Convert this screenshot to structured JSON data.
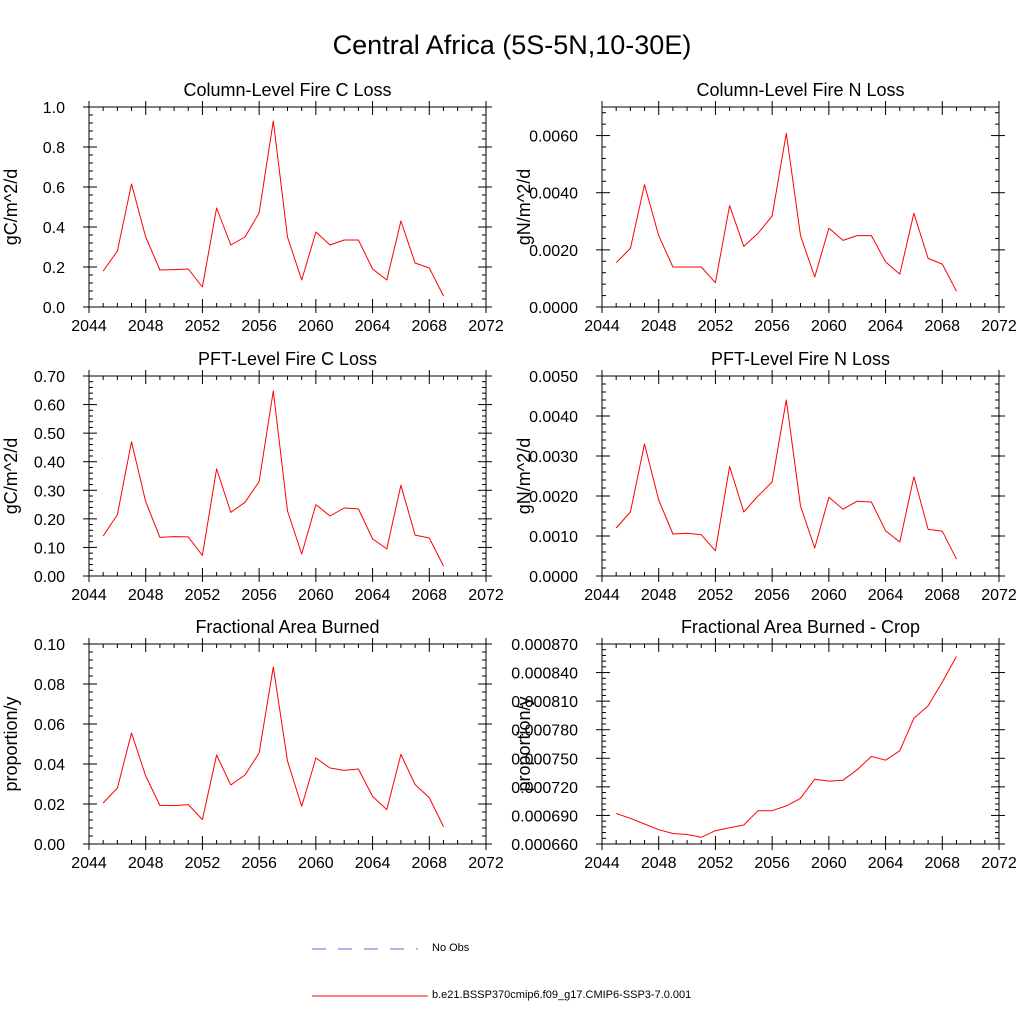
{
  "title": "Central Africa (5S-5N,10-30E)",
  "colors": {
    "model": "#ff0000",
    "obs": "#6a6ad8",
    "axis": "#000000"
  },
  "legend": {
    "obs_label": "No Obs",
    "model_label": "b.e21.BSSP370cmip6.f09_g17.CMIP6-SSP3-7.0.001"
  },
  "chart_data": [
    {
      "type": "line",
      "title": "Column-Level Fire C Loss",
      "ylabel": "gC/m^2/d",
      "xlim": [
        2044,
        2072
      ],
      "ylim": [
        0.0,
        1.0
      ],
      "xticks": [
        "2044",
        "2048",
        "2052",
        "2056",
        "2060",
        "2064",
        "2068",
        "2072"
      ],
      "yticks": [
        "0.0",
        "0.2",
        "0.4",
        "0.6",
        "0.8",
        "1.0"
      ],
      "series": [
        {
          "name": "b.e21.BSSP370cmip6.f09_g17.CMIP6-SSP3-7.0.001",
          "x": [
            2045,
            2046,
            2047,
            2048,
            2049,
            2050,
            2051,
            2052,
            2053,
            2054,
            2055,
            2056,
            2057,
            2058,
            2059,
            2060,
            2061,
            2062,
            2063,
            2064,
            2065,
            2066,
            2067,
            2068,
            2069
          ],
          "y": [
            0.18,
            0.28,
            0.615,
            0.35,
            0.185,
            0.187,
            0.19,
            0.1,
            0.495,
            0.31,
            0.35,
            0.47,
            0.93,
            0.35,
            0.135,
            0.375,
            0.31,
            0.335,
            0.335,
            0.19,
            0.135,
            0.43,
            0.22,
            0.195,
            0.055
          ]
        }
      ]
    },
    {
      "type": "line",
      "title": "Column-Level Fire N Loss",
      "ylabel": "gN/m^2/d",
      "xlim": [
        2044,
        2072
      ],
      "ylim": [
        0.0,
        0.007
      ],
      "xticks": [
        "2044",
        "2048",
        "2052",
        "2056",
        "2060",
        "2064",
        "2068",
        "2072"
      ],
      "yticks": [
        "0.0000",
        "0.0020",
        "0.0040",
        "0.0060"
      ],
      "series": [
        {
          "name": "b.e21.BSSP370cmip6.f09_g17.CMIP6-SSP3-7.0.001",
          "x": [
            2045,
            2046,
            2047,
            2048,
            2049,
            2050,
            2051,
            2052,
            2053,
            2054,
            2055,
            2056,
            2057,
            2058,
            2059,
            2060,
            2061,
            2062,
            2063,
            2064,
            2065,
            2066,
            2067,
            2068,
            2069
          ],
          "y": [
            0.00155,
            0.00205,
            0.00428,
            0.0025,
            0.0014,
            0.0014,
            0.0014,
            0.00085,
            0.00355,
            0.00212,
            0.00258,
            0.00318,
            0.00608,
            0.0025,
            0.00105,
            0.00276,
            0.00233,
            0.0025,
            0.0025,
            0.00158,
            0.00115,
            0.00328,
            0.0017,
            0.0015,
            0.00055
          ]
        }
      ]
    },
    {
      "type": "line",
      "title": "PFT-Level Fire C Loss",
      "ylabel": "gC/m^2/d",
      "xlim": [
        2044,
        2072
      ],
      "ylim": [
        0.0,
        0.7
      ],
      "xticks": [
        "2044",
        "2048",
        "2052",
        "2056",
        "2060",
        "2064",
        "2068",
        "2072"
      ],
      "yticks": [
        "0.00",
        "0.10",
        "0.20",
        "0.30",
        "0.40",
        "0.50",
        "0.60",
        "0.70"
      ],
      "series": [
        {
          "name": "b.e21.BSSP370cmip6.f09_g17.CMIP6-SSP3-7.0.001",
          "x": [
            2045,
            2046,
            2047,
            2048,
            2049,
            2050,
            2051,
            2052,
            2053,
            2054,
            2055,
            2056,
            2057,
            2058,
            2059,
            2060,
            2061,
            2062,
            2063,
            2064,
            2065,
            2066,
            2067,
            2068,
            2069
          ],
          "y": [
            0.14,
            0.215,
            0.47,
            0.26,
            0.135,
            0.138,
            0.137,
            0.072,
            0.375,
            0.223,
            0.258,
            0.33,
            0.648,
            0.228,
            0.077,
            0.25,
            0.21,
            0.238,
            0.235,
            0.13,
            0.095,
            0.318,
            0.143,
            0.133,
            0.035
          ]
        }
      ]
    },
    {
      "type": "line",
      "title": "PFT-Level Fire N Loss",
      "ylabel": "gN/m^2/d",
      "xlim": [
        2044,
        2072
      ],
      "ylim": [
        0.0,
        0.005
      ],
      "xticks": [
        "2044",
        "2048",
        "2052",
        "2056",
        "2060",
        "2064",
        "2068",
        "2072"
      ],
      "yticks": [
        "0.0000",
        "0.0010",
        "0.0020",
        "0.0030",
        "0.0040",
        "0.0050"
      ],
      "series": [
        {
          "name": "b.e21.BSSP370cmip6.f09_g17.CMIP6-SSP3-7.0.001",
          "x": [
            2045,
            2046,
            2047,
            2048,
            2049,
            2050,
            2051,
            2052,
            2053,
            2054,
            2055,
            2056,
            2057,
            2058,
            2059,
            2060,
            2061,
            2062,
            2063,
            2064,
            2065,
            2066,
            2067,
            2068,
            2069
          ],
          "y": [
            0.0012,
            0.0016,
            0.0033,
            0.0019,
            0.00105,
            0.00107,
            0.00103,
            0.00063,
            0.00274,
            0.0016,
            0.002,
            0.00235,
            0.0044,
            0.00175,
            0.0007,
            0.00197,
            0.00167,
            0.00187,
            0.00185,
            0.00113,
            0.00085,
            0.00248,
            0.00117,
            0.00112,
            0.00042
          ]
        }
      ]
    },
    {
      "type": "line",
      "title": "Fractional Area Burned",
      "ylabel": "proportion/y",
      "xlim": [
        2044,
        2072
      ],
      "ylim": [
        0.0,
        0.1
      ],
      "xticks": [
        "2044",
        "2048",
        "2052",
        "2056",
        "2060",
        "2064",
        "2068",
        "2072"
      ],
      "yticks": [
        "0.00",
        "0.02",
        "0.04",
        "0.06",
        "0.08",
        "0.10"
      ],
      "series": [
        {
          "name": "b.e21.BSSP370cmip6.f09_g17.CMIP6-SSP3-7.0.001",
          "x": [
            2045,
            2046,
            2047,
            2048,
            2049,
            2050,
            2051,
            2052,
            2053,
            2054,
            2055,
            2056,
            2057,
            2058,
            2059,
            2060,
            2061,
            2062,
            2063,
            2064,
            2065,
            2066,
            2067,
            2068,
            2069
          ],
          "y": [
            0.0205,
            0.028,
            0.0555,
            0.034,
            0.0193,
            0.0192,
            0.0197,
            0.0122,
            0.0445,
            0.0295,
            0.0345,
            0.0455,
            0.0885,
            0.0415,
            0.0188,
            0.043,
            0.038,
            0.0368,
            0.0375,
            0.0238,
            0.0172,
            0.0448,
            0.0297,
            0.0232,
            0.0087
          ]
        }
      ]
    },
    {
      "type": "line",
      "title": "Fractional Area Burned - Crop",
      "ylabel": "proportion/y",
      "xlim": [
        2044,
        2072
      ],
      "ylim": [
        0.00066,
        0.00087
      ],
      "xticks": [
        "2044",
        "2048",
        "2052",
        "2056",
        "2060",
        "2064",
        "2068",
        "2072"
      ],
      "yticks": [
        "0.000660",
        "0.000690",
        "0.000720",
        "0.000750",
        "0.000780",
        "0.000810",
        "0.000840",
        "0.000870"
      ],
      "series": [
        {
          "name": "b.e21.BSSP370cmip6.f09_g17.CMIP6-SSP3-7.0.001",
          "x": [
            2045,
            2046,
            2047,
            2048,
            2049,
            2050,
            2051,
            2052,
            2053,
            2054,
            2055,
            2056,
            2057,
            2058,
            2059,
            2060,
            2061,
            2062,
            2063,
            2064,
            2065,
            2066,
            2067,
            2068,
            2069
          ],
          "y": [
            0.000692,
            0.000687,
            0.000681,
            0.000675,
            0.000671,
            0.00067,
            0.000667,
            0.000674,
            0.000677,
            0.00068,
            0.000695,
            0.000695,
            0.0007,
            0.000708,
            0.000728,
            0.000726,
            0.000727,
            0.000738,
            0.000752,
            0.000748,
            0.000758,
            0.000792,
            0.000805,
            0.00083,
            0.000857
          ]
        }
      ]
    }
  ]
}
